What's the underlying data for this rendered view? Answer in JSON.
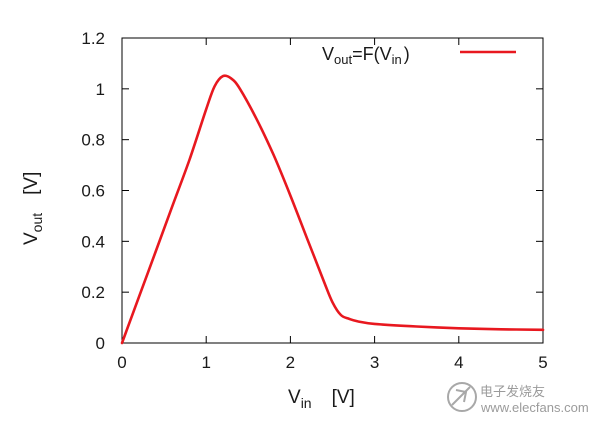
{
  "chart_data": {
    "type": "line",
    "xlabel_main": "V",
    "xlabel_sub": "in",
    "xlabel_unit": "[V]",
    "ylabel_main": "V",
    "ylabel_sub": "out",
    "ylabel_unit": "[V]",
    "xlim": [
      0,
      5
    ],
    "ylim": [
      0,
      1.2
    ],
    "xticks": [
      0,
      1,
      2,
      3,
      4,
      5
    ],
    "yticks": [
      0,
      0.2,
      0.4,
      0.6,
      0.8,
      1,
      1.2
    ],
    "grid": false,
    "legend_position": "top-right",
    "series": [
      {
        "name_main": "V",
        "name_out_sub": "out",
        "name_eq": "=F(V",
        "name_in_sub": "in",
        "name_close": ")",
        "color": "#e8181f",
        "x": [
          0,
          0.2,
          0.4,
          0.6,
          0.8,
          1.0,
          1.1,
          1.2,
          1.3,
          1.4,
          1.6,
          1.8,
          2.0,
          2.2,
          2.4,
          2.5,
          2.6,
          2.7,
          2.8,
          3.0,
          3.5,
          4.0,
          4.5,
          5.0
        ],
        "y": [
          0,
          0.18,
          0.36,
          0.54,
          0.72,
          0.92,
          1.01,
          1.05,
          1.04,
          1.0,
          0.88,
          0.74,
          0.58,
          0.41,
          0.24,
          0.16,
          0.11,
          0.095,
          0.085,
          0.075,
          0.065,
          0.058,
          0.054,
          0.052
        ]
      }
    ]
  },
  "watermark": {
    "site_name": "电子发烧友",
    "url": "www.elecfans.com"
  }
}
